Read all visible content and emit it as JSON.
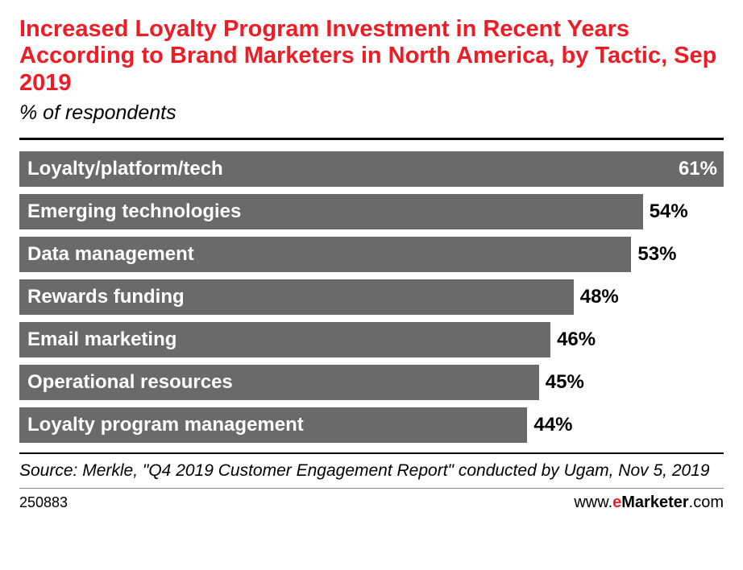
{
  "chart": {
    "type": "bar-horizontal",
    "title": "Increased Loyalty Program Investment in Recent Years According to Brand Marketers in North America, by Tactic, Sep 2019",
    "title_color": "#ee1c25",
    "title_fontsize": 29,
    "subtitle": "% of respondents",
    "subtitle_fontsize": 25,
    "bar_color": "#6a6a6a",
    "bar_label_color": "#ffffff",
    "value_label_fontsize": 24,
    "bar_label_fontsize": 24,
    "background_color": "#ffffff",
    "max_value": 61,
    "bars": [
      {
        "label": "Loyalty/platform/tech",
        "value": 61,
        "value_text": "61%",
        "value_position": "inside"
      },
      {
        "label": "Emerging technologies",
        "value": 54,
        "value_text": "54%",
        "value_position": "outside"
      },
      {
        "label": "Data management",
        "value": 53,
        "value_text": "53%",
        "value_position": "outside"
      },
      {
        "label": "Rewards funding",
        "value": 48,
        "value_text": "48%",
        "value_position": "outside"
      },
      {
        "label": "Email marketing",
        "value": 46,
        "value_text": "46%",
        "value_position": "outside"
      },
      {
        "label": "Operational resources",
        "value": 45,
        "value_text": "45%",
        "value_position": "outside"
      },
      {
        "label": "Loyalty program management",
        "value": 44,
        "value_text": "44%",
        "value_position": "outside"
      }
    ],
    "source": "Source: Merkle, \"Q4 2019 Customer Engagement Report\" conducted by Ugam, Nov 5, 2019",
    "footer_id": "250883",
    "logo_prefix": "www.",
    "logo_e": "e",
    "logo_e_color": "#ee1c25",
    "logo_marketer": "Marketer",
    "logo_suffix": ".com"
  }
}
